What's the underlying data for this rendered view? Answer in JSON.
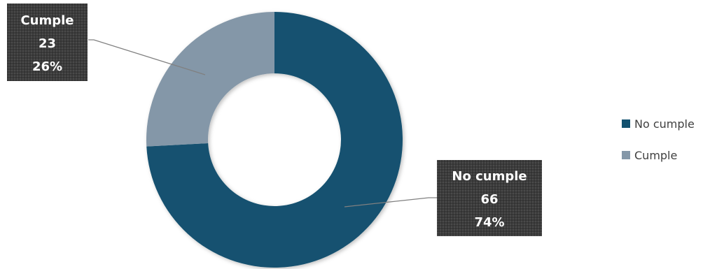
{
  "chart_data": {
    "type": "pie",
    "variant": "donut",
    "title": "",
    "categories": [
      "No cumple",
      "Cumple"
    ],
    "values": [
      66,
      23
    ],
    "percent_labels": [
      "74%",
      "26%"
    ],
    "value_labels": [
      "66",
      "23"
    ],
    "colors": [
      "#12516f",
      "#8497a8"
    ],
    "legend": {
      "position": "right",
      "items": [
        "No cumple",
        "Cumple"
      ]
    },
    "callouts": [
      {
        "category": "No cumple",
        "value": "66",
        "percent": "74%"
      },
      {
        "category": "Cumple",
        "value": "23",
        "percent": "26%"
      }
    ]
  }
}
